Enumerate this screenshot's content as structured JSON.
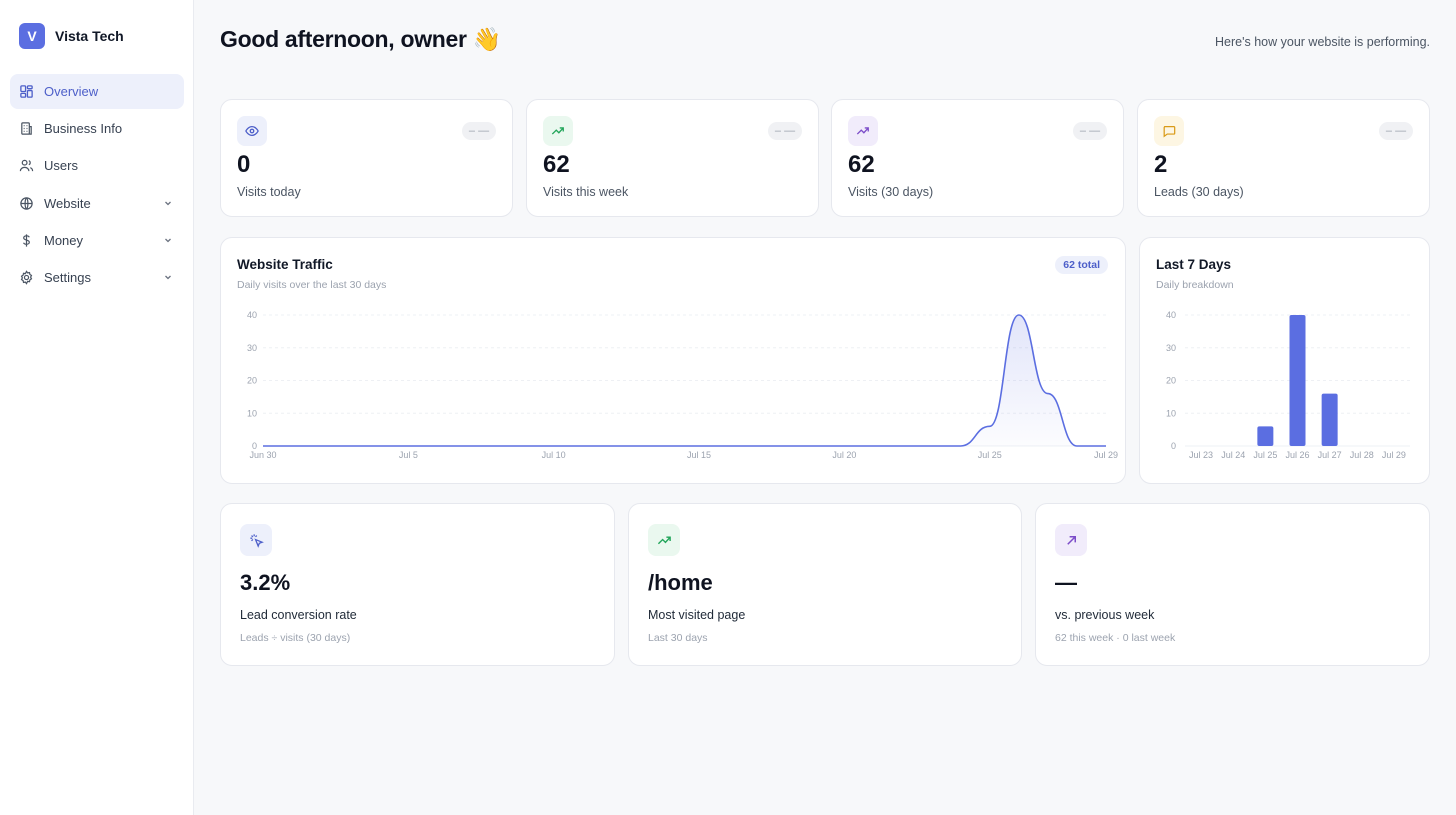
{
  "brand": {
    "logo_letter": "V",
    "name": "Vista Tech"
  },
  "nav": {
    "items": [
      {
        "label": "Overview",
        "icon": "grid-icon",
        "active": true
      },
      {
        "label": "Business Info",
        "icon": "building-icon"
      },
      {
        "label": "Users",
        "icon": "users-icon"
      },
      {
        "label": "Website",
        "icon": "globe-icon",
        "expandable": true
      },
      {
        "label": "Money",
        "icon": "dollar-icon",
        "expandable": true
      },
      {
        "label": "Settings",
        "icon": "gear-icon",
        "expandable": true
      }
    ]
  },
  "header": {
    "greeting": "Good afternoon, owner 👋",
    "subtitle": "Here's how your website is performing."
  },
  "stats": [
    {
      "value": "0",
      "label": "Visits today",
      "trend": "– —",
      "icon": "eye-icon",
      "color": "#4d5fc9",
      "bg": "#edf0fb"
    },
    {
      "value": "62",
      "label": "Visits this week",
      "trend": "– —",
      "icon": "trending-up-icon",
      "color": "#22a55a",
      "bg": "#eaf8ef"
    },
    {
      "value": "62",
      "label": "Visits (30 days)",
      "trend": "– —",
      "icon": "trending-up-icon",
      "color": "#7c4dc9",
      "bg": "#f1ecfb"
    },
    {
      "value": "2",
      "label": "Leads (30 days)",
      "trend": "– —",
      "icon": "message-icon",
      "color": "#d99a17",
      "bg": "#fdf6e3"
    }
  ],
  "traffic": {
    "title": "Website Traffic",
    "subtitle": "Daily visits over the last 30 days",
    "badge": "62 total"
  },
  "last7": {
    "title": "Last 7 Days",
    "subtitle": "Daily breakdown"
  },
  "chart_data": [
    {
      "type": "area",
      "title": "Website Traffic",
      "x_tick_labels": [
        "Jun 30",
        "Jul 5",
        "Jul 10",
        "Jul 15",
        "Jul 20",
        "Jul 25",
        "Jul 29"
      ],
      "y_ticks": [
        0,
        10,
        20,
        30,
        40
      ],
      "ylim": [
        0,
        40
      ],
      "x": [
        "Jun 30",
        "Jul 1",
        "Jul 2",
        "Jul 3",
        "Jul 4",
        "Jul 5",
        "Jul 6",
        "Jul 7",
        "Jul 8",
        "Jul 9",
        "Jul 10",
        "Jul 11",
        "Jul 12",
        "Jul 13",
        "Jul 14",
        "Jul 15",
        "Jul 16",
        "Jul 17",
        "Jul 18",
        "Jul 19",
        "Jul 20",
        "Jul 21",
        "Jul 22",
        "Jul 23",
        "Jul 24",
        "Jul 25",
        "Jul 26",
        "Jul 27",
        "Jul 28",
        "Jul 29"
      ],
      "values": [
        0,
        0,
        0,
        0,
        0,
        0,
        0,
        0,
        0,
        0,
        0,
        0,
        0,
        0,
        0,
        0,
        0,
        0,
        0,
        0,
        0,
        0,
        0,
        0,
        0,
        6,
        40,
        16,
        0,
        0
      ],
      "color": "#5b6ee1",
      "grid": true
    },
    {
      "type": "bar",
      "title": "Last 7 Days",
      "categories": [
        "Jul 23",
        "Jul 24",
        "Jul 25",
        "Jul 26",
        "Jul 27",
        "Jul 28",
        "Jul 29"
      ],
      "values": [
        0,
        0,
        6,
        40,
        16,
        0,
        0
      ],
      "y_ticks": [
        0,
        10,
        20,
        30,
        40
      ],
      "ylim": [
        0,
        40
      ],
      "color": "#5b6ee1",
      "grid": true
    }
  ],
  "metrics": [
    {
      "value": "3.2%",
      "label": "Lead conversion rate",
      "sub": "Leads ÷ visits (30 days)",
      "icon": "cursor-click-icon",
      "color": "#4d5fc9",
      "bg": "#edf0fb"
    },
    {
      "value": "/home",
      "label": "Most visited page",
      "sub": "Last 30 days",
      "icon": "trending-up-icon",
      "color": "#22a55a",
      "bg": "#eaf8ef"
    },
    {
      "value": "—",
      "label": "vs. previous week",
      "sub": "62 this week · 0 last week",
      "icon": "arrow-up-right-icon",
      "color": "#7c4dc9",
      "bg": "#f1ecfb"
    }
  ]
}
